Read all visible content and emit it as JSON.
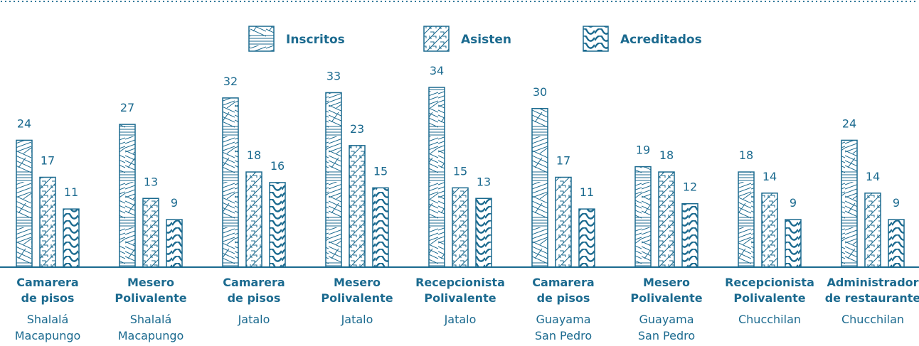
{
  "chart_data": {
    "type": "bar",
    "title": "",
    "xlabel": "",
    "ylabel": "",
    "ylim": [
      0,
      34
    ],
    "legend_position": "top-center",
    "grid": false,
    "colors": {
      "ink": "#1b6a8f",
      "background": "#ffffff"
    },
    "series": [
      {
        "name": "Inscritos",
        "pattern": "mixed-hatch",
        "values": [
          24,
          27,
          32,
          33,
          34,
          30,
          19,
          18,
          24
        ]
      },
      {
        "name": "Asisten",
        "pattern": "maze-hatch",
        "values": [
          17,
          13,
          18,
          23,
          15,
          17,
          18,
          14,
          14
        ]
      },
      {
        "name": "Acreditados",
        "pattern": "waves",
        "values": [
          11,
          9,
          16,
          15,
          13,
          11,
          12,
          9,
          9
        ]
      }
    ],
    "categories": [
      {
        "name": [
          "Camarera",
          "de pisos"
        ],
        "place": [
          "Shalalá",
          "Macapungo"
        ]
      },
      {
        "name": [
          "Mesero",
          "Polivalente"
        ],
        "place": [
          "Shalalá",
          "Macapungo"
        ]
      },
      {
        "name": [
          "Camarera",
          "de pisos"
        ],
        "place": [
          "Jatalo"
        ]
      },
      {
        "name": [
          "Mesero",
          "Polivalente"
        ],
        "place": [
          "Jatalo"
        ]
      },
      {
        "name": [
          "Recepcionista",
          "Polivalente"
        ],
        "place": [
          "Jatalo"
        ]
      },
      {
        "name": [
          "Camarera",
          "de pisos"
        ],
        "place": [
          "Guayama",
          "San Pedro"
        ]
      },
      {
        "name": [
          "Mesero",
          "Polivalente"
        ],
        "place": [
          "Guayama",
          "San Pedro"
        ]
      },
      {
        "name": [
          "Recepcionista",
          "Polivalente"
        ],
        "place": [
          "Chucchilan"
        ]
      },
      {
        "name": [
          "Administrador",
          "de restaurante"
        ],
        "place": [
          "Chucchilan"
        ]
      }
    ]
  }
}
